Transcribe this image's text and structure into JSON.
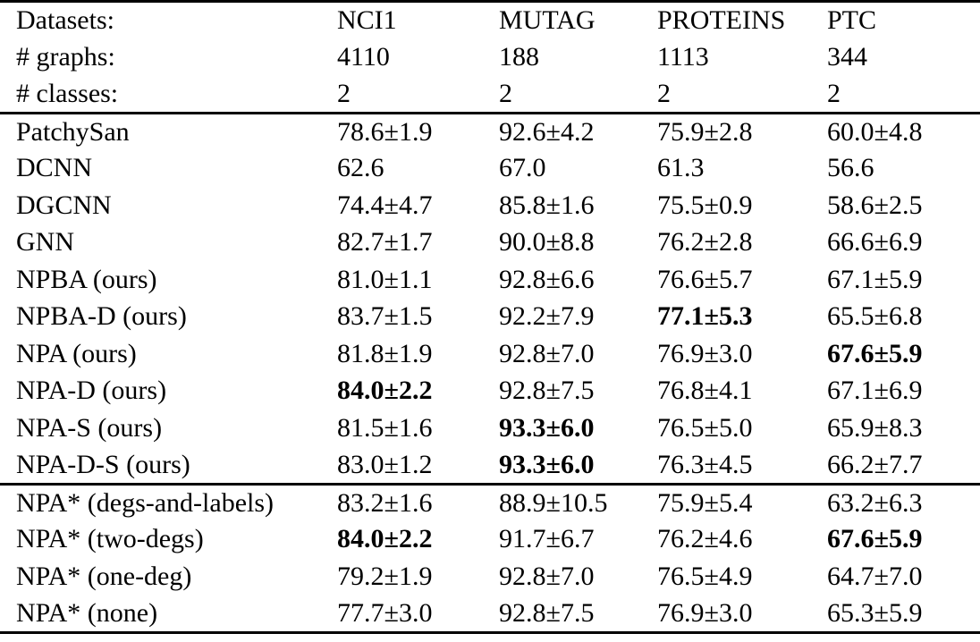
{
  "page": {
    "background": "#ffffff",
    "text_color": "#000000",
    "rule_color": "#000000"
  },
  "table": {
    "header_rows": [
      {
        "label": "Datasets:",
        "values": [
          "NCI1",
          "MUTAG",
          "PROTEINS",
          "PTC"
        ]
      },
      {
        "label": "# graphs:",
        "values": [
          "4110",
          "188",
          "1113",
          "344"
        ]
      },
      {
        "label": "# classes:",
        "values": [
          "2",
          "2",
          "2",
          "2"
        ]
      }
    ],
    "groups": [
      {
        "rows": [
          {
            "method": "PatchySan",
            "cells": [
              {
                "text": "78.6±1.9",
                "bold": false
              },
              {
                "text": "92.6±4.2",
                "bold": false
              },
              {
                "text": "75.9±2.8",
                "bold": false
              },
              {
                "text": "60.0±4.8",
                "bold": false
              }
            ]
          },
          {
            "method": "DCNN",
            "cells": [
              {
                "text": "62.6",
                "bold": false
              },
              {
                "text": "67.0",
                "bold": false
              },
              {
                "text": "61.3",
                "bold": false
              },
              {
                "text": "56.6",
                "bold": false
              }
            ]
          },
          {
            "method": "DGCNN",
            "cells": [
              {
                "text": "74.4±4.7",
                "bold": false
              },
              {
                "text": "85.8±1.6",
                "bold": false
              },
              {
                "text": "75.5±0.9",
                "bold": false
              },
              {
                "text": "58.6±2.5",
                "bold": false
              }
            ]
          },
          {
            "method": "GNN",
            "cells": [
              {
                "text": "82.7±1.7",
                "bold": false
              },
              {
                "text": "90.0±8.8",
                "bold": false
              },
              {
                "text": "76.2±2.8",
                "bold": false
              },
              {
                "text": "66.6±6.9",
                "bold": false
              }
            ]
          },
          {
            "method": "NPBA (ours)",
            "cells": [
              {
                "text": "81.0±1.1",
                "bold": false
              },
              {
                "text": "92.8±6.6",
                "bold": false
              },
              {
                "text": "76.6±5.7",
                "bold": false
              },
              {
                "text": "67.1±5.9",
                "bold": false
              }
            ]
          },
          {
            "method": "NPBA-D (ours)",
            "cells": [
              {
                "text": "83.7±1.5",
                "bold": false
              },
              {
                "text": "92.2±7.9",
                "bold": false
              },
              {
                "text": "77.1±5.3",
                "bold": true
              },
              {
                "text": "65.5±6.8",
                "bold": false
              }
            ]
          },
          {
            "method": "NPA (ours)",
            "cells": [
              {
                "text": "81.8±1.9",
                "bold": false
              },
              {
                "text": "92.8±7.0",
                "bold": false
              },
              {
                "text": "76.9±3.0",
                "bold": false
              },
              {
                "text": "67.6±5.9",
                "bold": true
              }
            ]
          },
          {
            "method": "NPA-D (ours)",
            "cells": [
              {
                "text": "84.0±2.2",
                "bold": true
              },
              {
                "text": "92.8±7.5",
                "bold": false
              },
              {
                "text": "76.8±4.1",
                "bold": false
              },
              {
                "text": "67.1±6.9",
                "bold": false
              }
            ]
          },
          {
            "method": "NPA-S (ours)",
            "cells": [
              {
                "text": "81.5±1.6",
                "bold": false
              },
              {
                "text": "93.3±6.0",
                "bold": true
              },
              {
                "text": "76.5±5.0",
                "bold": false
              },
              {
                "text": "65.9±8.3",
                "bold": false
              }
            ]
          },
          {
            "method": "NPA-D-S (ours)",
            "cells": [
              {
                "text": "83.0±1.2",
                "bold": false
              },
              {
                "text": "93.3±6.0",
                "bold": true
              },
              {
                "text": "76.3±4.5",
                "bold": false
              },
              {
                "text": "66.2±7.7",
                "bold": false
              }
            ]
          }
        ]
      },
      {
        "rows": [
          {
            "method": "NPA* (degs-and-labels)",
            "cells": [
              {
                "text": "83.2±1.6",
                "bold": false
              },
              {
                "text": "88.9±10.5",
                "bold": false
              },
              {
                "text": "75.9±5.4",
                "bold": false
              },
              {
                "text": "63.2±6.3",
                "bold": false
              }
            ]
          },
          {
            "method": "NPA* (two-degs)",
            "cells": [
              {
                "text": "84.0±2.2",
                "bold": true
              },
              {
                "text": "91.7±6.7",
                "bold": false
              },
              {
                "text": "76.2±4.6",
                "bold": false
              },
              {
                "text": "67.6±5.9",
                "bold": true
              }
            ]
          },
          {
            "method": "NPA* (one-deg)",
            "cells": [
              {
                "text": "79.2±1.9",
                "bold": false
              },
              {
                "text": "92.8±7.0",
                "bold": false
              },
              {
                "text": "76.5±4.9",
                "bold": false
              },
              {
                "text": "64.7±7.0",
                "bold": false
              }
            ]
          },
          {
            "method": "NPA* (none)",
            "cells": [
              {
                "text": "77.7±3.0",
                "bold": false
              },
              {
                "text": "92.8±7.5",
                "bold": false
              },
              {
                "text": "76.9±3.0",
                "bold": false
              },
              {
                "text": "65.3±5.9",
                "bold": false
              }
            ]
          }
        ]
      }
    ]
  }
}
